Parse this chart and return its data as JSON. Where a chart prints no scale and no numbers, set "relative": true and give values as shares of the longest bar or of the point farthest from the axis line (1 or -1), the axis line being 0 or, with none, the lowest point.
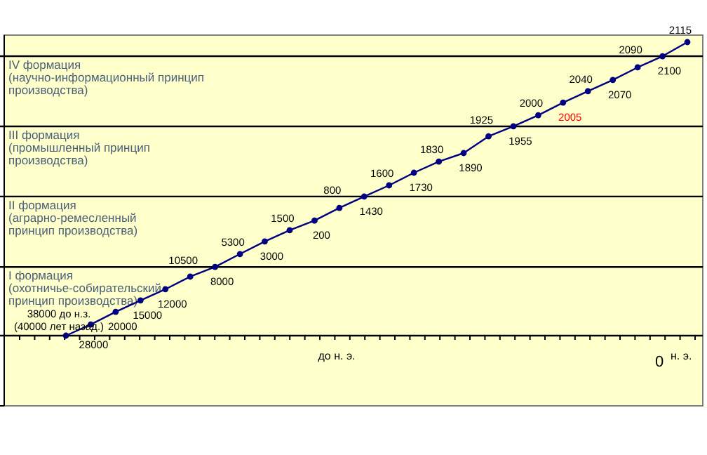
{
  "chart_data": {
    "type": "line",
    "relative": true,
    "xlabel": "до н. э.",
    "marker": "circle",
    "categories": [
      null,
      null,
      null,
      null,
      null,
      null,
      null,
      null,
      null,
      null,
      null,
      null,
      null,
      null,
      null,
      null,
      null,
      null,
      null,
      null,
      null,
      null,
      null,
      null,
      null,
      null
    ],
    "series": [
      {
        "color": "#000080",
        "values": [
          0,
          0.038,
          0.081,
          0.12,
          0.158,
          0.201,
          0.234,
          0.278,
          0.321,
          0.359,
          0.392,
          0.435,
          0.474,
          0.512,
          0.555,
          0.593,
          0.622,
          0.679,
          0.713,
          0.751,
          0.794,
          0.833,
          0.871,
          0.914,
          0.952,
          1.0
        ]
      }
    ],
    "annotations": [
      "0",
      "н. э.",
      "38000 до н.з.\n(40000 лет  назад.)",
      "28000",
      "20000",
      "15000",
      "12000",
      "10500",
      "8000",
      "5300",
      "3000",
      "1500",
      "200",
      "800",
      "1430",
      "1600",
      "1730",
      "1830",
      "1890",
      "1925",
      "1955",
      "2000",
      "2005",
      "2040",
      "2070",
      "2090",
      "2100",
      "2115"
    ],
    "ref_lines": [
      {
        "axis": "y",
        "value": 0.234,
        "color": "#000000",
        "label": "I формация\n(охотничье-собирательский\nпринцип производства)"
      },
      {
        "axis": "y",
        "value": 0.474,
        "color": "#000000",
        "label": "II формация\n(аграрно-ремесленный\nпринцип производства)"
      },
      {
        "axis": "y",
        "value": 0.713,
        "color": "#000000",
        "label": "III формация\n(промышленный принцип\nпроизводства)"
      },
      {
        "axis": "y",
        "value": 0.952,
        "color": "#000000",
        "label": "IV формация\n(научно-информационный принцип\nпроизводства)"
      }
    ]
  }
}
